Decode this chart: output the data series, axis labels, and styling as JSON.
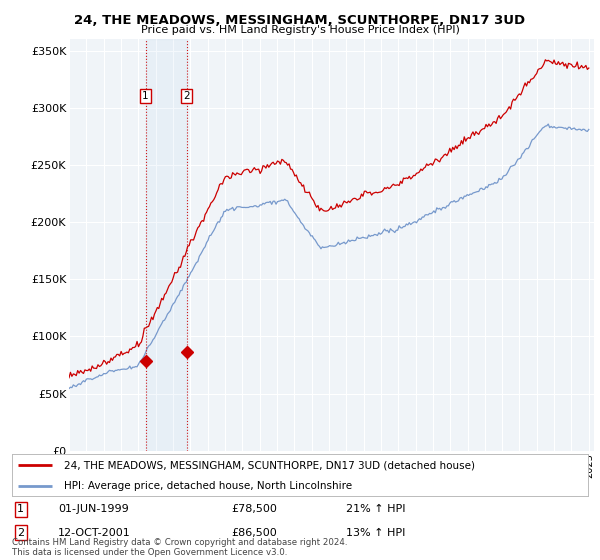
{
  "title": "24, THE MEADOWS, MESSINGHAM, SCUNTHORPE, DN17 3UD",
  "subtitle": "Price paid vs. HM Land Registry's House Price Index (HPI)",
  "ylim": [
    0,
    360000
  ],
  "yticks": [
    0,
    50000,
    100000,
    150000,
    200000,
    250000,
    300000,
    350000
  ],
  "ytick_labels": [
    "£0",
    "£50K",
    "£100K",
    "£150K",
    "£200K",
    "£250K",
    "£300K",
    "£350K"
  ],
  "legend_line1": "24, THE MEADOWS, MESSINGHAM, SCUNTHORPE, DN17 3UD (detached house)",
  "legend_line2": "HPI: Average price, detached house, North Lincolnshire",
  "legend_color1": "#cc0000",
  "legend_color2": "#7799cc",
  "transaction1_date": "01-JUN-1999",
  "transaction1_price": "£78,500",
  "transaction1_hpi": "21% ↑ HPI",
  "transaction2_date": "12-OCT-2001",
  "transaction2_price": "£86,500",
  "transaction2_hpi": "13% ↑ HPI",
  "footer": "Contains HM Land Registry data © Crown copyright and database right 2024.\nThis data is licensed under the Open Government Licence v3.0.",
  "background_color": "#ffffff",
  "plot_bg_color": "#f0f4f8",
  "grid_color": "#ffffff",
  "transaction1_year": 1999.42,
  "transaction2_year": 2001.79,
  "hpi_color": "#7799cc",
  "price_color": "#cc0000",
  "t1_price_y": 78500,
  "t2_price_y": 86500,
  "xlim_left": 1995.0,
  "xlim_right": 2025.3
}
